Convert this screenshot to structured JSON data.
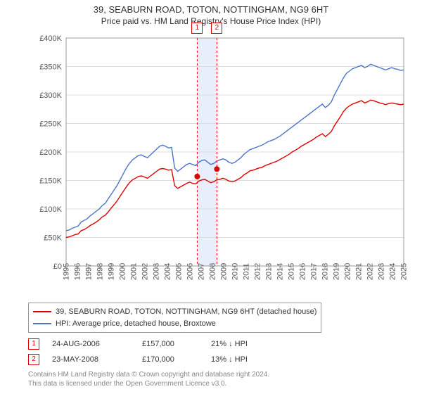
{
  "title_line1": "39, SEABURN ROAD, TOTON, NOTTINGHAM, NG9 6HT",
  "title_line2": "Price paid vs. HM Land Registry's House Price Index (HPI)",
  "chart": {
    "background": "#ffffff",
    "grid_color": "#dddddd",
    "axis_color": "#999999",
    "tick_color": "#555555",
    "ylim": [
      0,
      400000
    ],
    "ytick_step": 50000,
    "ytick_labels": [
      "£0",
      "£50K",
      "£100K",
      "£150K",
      "£200K",
      "£250K",
      "£300K",
      "£350K",
      "£400K"
    ],
    "xlim": [
      1995,
      2025
    ],
    "xtick_step": 1,
    "xtick_labels": [
      "1995",
      "1996",
      "1997",
      "1998",
      "1999",
      "2000",
      "2001",
      "2002",
      "2003",
      "2004",
      "2005",
      "2006",
      "2007",
      "2008",
      "2009",
      "2010",
      "2011",
      "2012",
      "2013",
      "2014",
      "2015",
      "2016",
      "2017",
      "2018",
      "2019",
      "2020",
      "2021",
      "2022",
      "2023",
      "2024",
      "2025"
    ],
    "series": [
      {
        "name": "hpi",
        "label": "HPI: Average price, detached house, Broxtowe",
        "color": "#4a74c9",
        "width": 1.4,
        "values_k": [
          62,
          63,
          66,
          68,
          70,
          77,
          80,
          83,
          88,
          92,
          96,
          100,
          106,
          110,
          118,
          126,
          134,
          142,
          152,
          162,
          172,
          180,
          186,
          190,
          194,
          195,
          192,
          190,
          195,
          200,
          205,
          210,
          212,
          210,
          207,
          208,
          172,
          166,
          170,
          174,
          178,
          180,
          178,
          176,
          182,
          185,
          186,
          182,
          178,
          180,
          184,
          186,
          188,
          186,
          182,
          180,
          182,
          186,
          190,
          196,
          200,
          204,
          206,
          208,
          210,
          212,
          215,
          218,
          220,
          222,
          225,
          228,
          232,
          236,
          240,
          244,
          248,
          252,
          256,
          260,
          264,
          268,
          272,
          276,
          280,
          284,
          278,
          282,
          288,
          300,
          310,
          320,
          330,
          338,
          342,
          346,
          348,
          350,
          352,
          348,
          350,
          354,
          352,
          350,
          348,
          346,
          344,
          346,
          348,
          346,
          345,
          343,
          344
        ]
      },
      {
        "name": "subject",
        "label": "39, SEABURN ROAD, TOTON, NOTTINGHAM, NG9 6HT (detached house)",
        "color": "#e00000",
        "width": 1.4,
        "values_k": [
          50,
          51,
          53,
          55,
          56,
          62,
          64,
          67,
          71,
          74,
          77,
          81,
          86,
          89,
          95,
          102,
          108,
          115,
          123,
          131,
          139,
          146,
          151,
          154,
          157,
          158,
          156,
          154,
          158,
          162,
          166,
          170,
          171,
          170,
          168,
          169,
          141,
          136,
          139,
          142,
          145,
          147,
          145,
          144,
          149,
          151,
          152,
          149,
          146,
          148,
          151,
          152,
          154,
          152,
          149,
          148,
          149,
          152,
          155,
          160,
          163,
          167,
          168,
          170,
          172,
          173,
          176,
          178,
          180,
          182,
          184,
          187,
          190,
          193,
          196,
          200,
          203,
          206,
          210,
          213,
          216,
          219,
          222,
          226,
          229,
          232,
          227,
          231,
          236,
          246,
          254,
          262,
          271,
          277,
          281,
          284,
          286,
          288,
          290,
          286,
          288,
          291,
          290,
          288,
          286,
          285,
          283,
          285,
          286,
          285,
          284,
          283,
          284
        ]
      }
    ],
    "sale_band": {
      "start_year": 2006.65,
      "end_year": 2008.4,
      "fill": "#e8eefc"
    },
    "sale_markers": [
      {
        "num": "1",
        "year": 2006.65,
        "price_k": 157,
        "line_color": "#e00000",
        "dot_color": "#e00000"
      },
      {
        "num": "2",
        "year": 2008.4,
        "price_k": 170,
        "line_color": "#e00000",
        "dot_color": "#e00000"
      }
    ]
  },
  "legend": {
    "series1": {
      "color": "#e00000",
      "text": "39, SEABURN ROAD, TOTON, NOTTINGHAM, NG9 6HT (detached house)"
    },
    "series2": {
      "color": "#4a74c9",
      "text": "HPI: Average price, detached house, Broxtowe"
    }
  },
  "sales": [
    {
      "num": "1",
      "date": "24-AUG-2006",
      "price": "£157,000",
      "diff": "21% ↓ HPI"
    },
    {
      "num": "2",
      "date": "23-MAY-2008",
      "price": "£170,000",
      "diff": "13% ↓ HPI"
    }
  ],
  "footer_line1": "Contains HM Land Registry data © Crown copyright and database right 2024.",
  "footer_line2": "This data is licensed under the Open Government Licence v3.0."
}
